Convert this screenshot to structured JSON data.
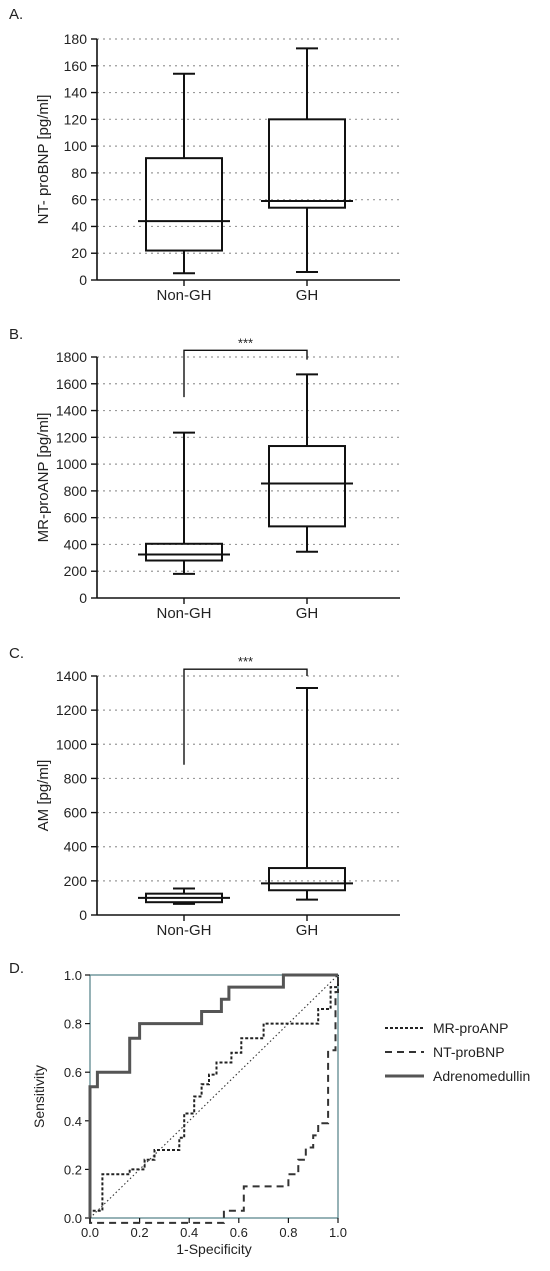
{
  "figure": "four-panel",
  "chart_data": [
    {
      "panel": "A.",
      "type": "box",
      "ylabel": "NT- proBNP [pg/ml]",
      "ylim": [
        0,
        180
      ],
      "yticks": [
        0,
        20,
        40,
        60,
        80,
        100,
        120,
        140,
        160,
        180
      ],
      "categories": [
        "Non-GH",
        "GH"
      ],
      "boxes": [
        {
          "category": "Non-GH",
          "min": 5,
          "q1": 22,
          "median": 44,
          "q3": 91,
          "max": 154
        },
        {
          "category": "GH",
          "min": 6,
          "q1": 54,
          "median": 59,
          "q3": 120,
          "max": 173
        }
      ],
      "grid": "horizontal dotted",
      "significance": null
    },
    {
      "panel": "B.",
      "type": "box",
      "ylabel": "MR-proANP [pg/ml]",
      "ylim": [
        0,
        1800
      ],
      "yticks": [
        0,
        200,
        400,
        600,
        800,
        1000,
        1200,
        1400,
        1600,
        1800
      ],
      "categories": [
        "Non-GH",
        "GH"
      ],
      "boxes": [
        {
          "category": "Non-GH",
          "min": 180,
          "q1": 280,
          "median": 325,
          "q3": 405,
          "max": 1235
        },
        {
          "category": "GH",
          "min": 345,
          "q1": 535,
          "median": 855,
          "q3": 1135,
          "max": 1670
        }
      ],
      "grid": "horizontal dotted",
      "significance": {
        "label": "***",
        "bracket_top": 1850,
        "left_leg_bottom": 1500,
        "right_leg_bottom": 1780
      }
    },
    {
      "panel": "C.",
      "type": "box",
      "ylabel": "AM [pg/ml]",
      "ylim": [
        0,
        1400
      ],
      "yticks": [
        0,
        200,
        400,
        600,
        800,
        1000,
        1200,
        1400
      ],
      "categories": [
        "Non-GH",
        "GH"
      ],
      "boxes": [
        {
          "category": "Non-GH",
          "min": 65,
          "q1": 75,
          "median": 100,
          "q3": 125,
          "max": 155
        },
        {
          "category": "GH",
          "min": 90,
          "q1": 145,
          "median": 185,
          "q3": 275,
          "max": 1330
        }
      ],
      "grid": "horizontal dotted",
      "significance": {
        "label": "***",
        "bracket_top": 1440,
        "left_leg_bottom": 880,
        "right_leg_bottom": 1400
      }
    },
    {
      "panel": "D.",
      "type": "line",
      "xlabel": "1-Specificity",
      "ylabel": "Sensitivity",
      "xlim": [
        0,
        1
      ],
      "ylim": [
        0,
        1
      ],
      "xticks": [
        "0.0",
        "0.2",
        "0.4",
        "0.6",
        "0.8",
        "1.0"
      ],
      "yticks": [
        "0.0",
        "0.2",
        "0.4",
        "0.6",
        "0.8",
        "1.0"
      ],
      "legend_position": "right",
      "series": [
        {
          "name": "MR-proANP",
          "style": "dotted-dash",
          "points": [
            [
              0,
              0
            ],
            [
              0,
              0.03
            ],
            [
              0.05,
              0.03
            ],
            [
              0.05,
              0.18
            ],
            [
              0.16,
              0.18
            ],
            [
              0.16,
              0.2
            ],
            [
              0.22,
              0.2
            ],
            [
              0.22,
              0.24
            ],
            [
              0.26,
              0.24
            ],
            [
              0.26,
              0.28
            ],
            [
              0.36,
              0.28
            ],
            [
              0.36,
              0.33
            ],
            [
              0.38,
              0.33
            ],
            [
              0.38,
              0.43
            ],
            [
              0.42,
              0.43
            ],
            [
              0.42,
              0.5
            ],
            [
              0.45,
              0.5
            ],
            [
              0.45,
              0.55
            ],
            [
              0.48,
              0.55
            ],
            [
              0.48,
              0.59
            ],
            [
              0.51,
              0.59
            ],
            [
              0.51,
              0.64
            ],
            [
              0.57,
              0.64
            ],
            [
              0.57,
              0.68
            ],
            [
              0.61,
              0.68
            ],
            [
              0.61,
              0.74
            ],
            [
              0.7,
              0.74
            ],
            [
              0.7,
              0.8
            ],
            [
              0.92,
              0.8
            ],
            [
              0.92,
              0.86
            ],
            [
              0.97,
              0.86
            ],
            [
              0.97,
              0.95
            ],
            [
              1,
              0.95
            ],
            [
              1,
              1
            ]
          ]
        },
        {
          "name": "NT-proBNP",
          "style": "dashed",
          "points": [
            [
              0,
              0
            ],
            [
              0,
              -0.02
            ],
            [
              0.54,
              -0.02
            ],
            [
              0.54,
              0.03
            ],
            [
              0.62,
              0.03
            ],
            [
              0.62,
              0.13
            ],
            [
              0.8,
              0.13
            ],
            [
              0.8,
              0.18
            ],
            [
              0.84,
              0.18
            ],
            [
              0.84,
              0.24
            ],
            [
              0.87,
              0.24
            ],
            [
              0.87,
              0.29
            ],
            [
              0.9,
              0.29
            ],
            [
              0.9,
              0.34
            ],
            [
              0.92,
              0.34
            ],
            [
              0.92,
              0.39
            ],
            [
              0.96,
              0.39
            ],
            [
              0.96,
              0.69
            ],
            [
              0.99,
              0.69
            ],
            [
              0.99,
              0.93
            ],
            [
              1,
              0.93
            ],
            [
              1,
              1
            ]
          ]
        },
        {
          "name": "Adrenomedullin",
          "style": "solid-grey",
          "points": [
            [
              0,
              0
            ],
            [
              0,
              0.54
            ],
            [
              0.03,
              0.54
            ],
            [
              0.03,
              0.6
            ],
            [
              0.16,
              0.6
            ],
            [
              0.16,
              0.74
            ],
            [
              0.2,
              0.74
            ],
            [
              0.2,
              0.8
            ],
            [
              0.45,
              0.8
            ],
            [
              0.45,
              0.85
            ],
            [
              0.53,
              0.85
            ],
            [
              0.53,
              0.9
            ],
            [
              0.56,
              0.9
            ],
            [
              0.56,
              0.95
            ],
            [
              0.78,
              0.95
            ],
            [
              0.78,
              1
            ],
            [
              1,
              1
            ]
          ]
        },
        {
          "name": "reference",
          "style": "diagonal-dotted",
          "points": [
            [
              0,
              0
            ],
            [
              1,
              1
            ]
          ]
        }
      ]
    }
  ]
}
